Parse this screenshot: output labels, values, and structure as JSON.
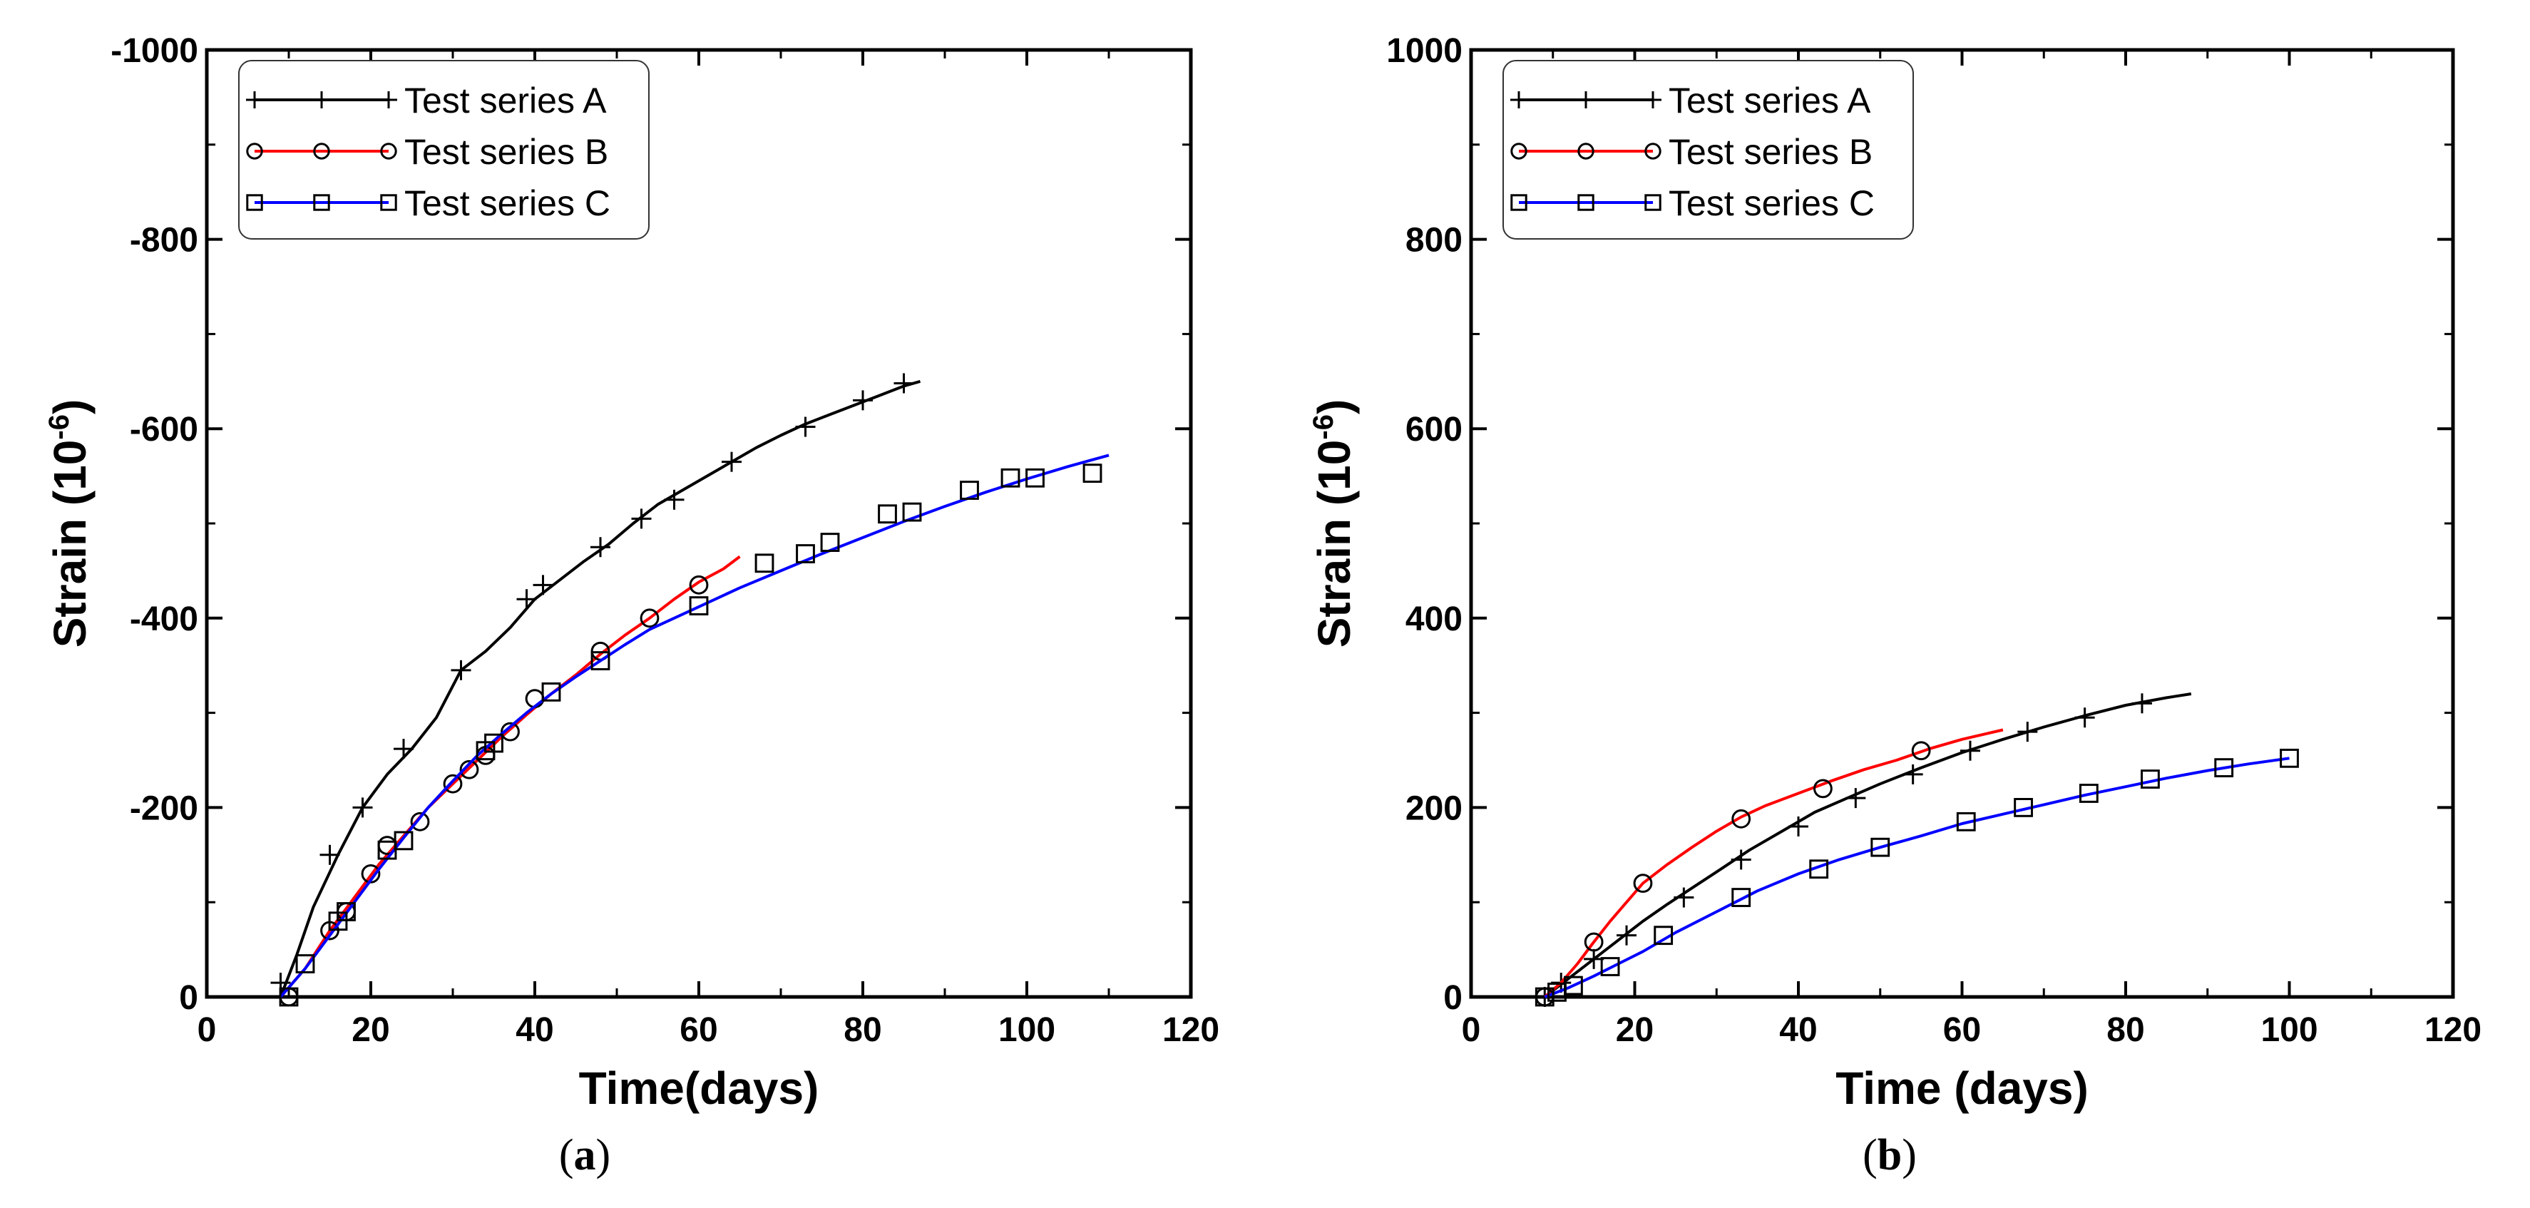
{
  "chart_data": [
    {
      "type": "line",
      "panel_label": "a",
      "xlabel": "Time(days)",
      "ylabel": "Strain (10",
      "ylabel_sup": "-6",
      "ylabel_close": ")",
      "xlim": [
        0,
        120
      ],
      "ylim": [
        0,
        -1000
      ],
      "xticks": [
        0,
        20,
        40,
        60,
        80,
        100,
        120
      ],
      "yticks": [
        0,
        -200,
        -400,
        -600,
        -800,
        -1000
      ],
      "legend_position": "top-left",
      "series": [
        {
          "name": "Test series A",
          "color": "#000000",
          "marker": "plus",
          "x": [
            9,
            11,
            13,
            16,
            19,
            22,
            25,
            28,
            31,
            34,
            37,
            40,
            43,
            46,
            49,
            52,
            55,
            58,
            61,
            64,
            67,
            70,
            73,
            76,
            79,
            82,
            85,
            87
          ],
          "y": [
            0,
            -45,
            -95,
            -150,
            -200,
            -235,
            -262,
            -295,
            -345,
            -365,
            -390,
            -420,
            -440,
            -460,
            -478,
            -500,
            -520,
            -535,
            -550,
            -565,
            -580,
            -593,
            -605,
            -615,
            -625,
            -635,
            -645,
            -650
          ],
          "markers_x": [
            9,
            15,
            19,
            24,
            31,
            39,
            41,
            48,
            53,
            57,
            64,
            73,
            80,
            85
          ],
          "markers_y": [
            -15,
            -150,
            -200,
            -262,
            -345,
            -420,
            -435,
            -475,
            -505,
            -525,
            -565,
            -602,
            -630,
            -648
          ]
        },
        {
          "name": "Test series B",
          "color": "#ff0000",
          "marker": "circle",
          "x": [
            9,
            12,
            15,
            18,
            21,
            24,
            27,
            30,
            33,
            36,
            39,
            42,
            45,
            48,
            51,
            54,
            57,
            60,
            63,
            65
          ],
          "y": [
            0,
            -30,
            -70,
            -105,
            -140,
            -170,
            -200,
            -225,
            -250,
            -275,
            -298,
            -320,
            -340,
            -362,
            -382,
            -400,
            -420,
            -438,
            -452,
            -465
          ],
          "markers_x": [
            10,
            15,
            17,
            20,
            22,
            26,
            30,
            32,
            34,
            37,
            40,
            48,
            54,
            60
          ],
          "markers_y": [
            0,
            -70,
            -90,
            -130,
            -160,
            -185,
            -225,
            -240,
            -255,
            -280,
            -315,
            -365,
            -400,
            -435
          ]
        },
        {
          "name": "Test series C",
          "color": "#0000ff",
          "marker": "square",
          "x": [
            9,
            12,
            15,
            18,
            21,
            24,
            27,
            30,
            33,
            36,
            39,
            42,
            45,
            48,
            51,
            54,
            57,
            60,
            65,
            70,
            75,
            80,
            85,
            90,
            95,
            100,
            105,
            110
          ],
          "y": [
            0,
            -30,
            -65,
            -100,
            -135,
            -168,
            -200,
            -228,
            -255,
            -278,
            -300,
            -320,
            -338,
            -355,
            -372,
            -388,
            -400,
            -412,
            -432,
            -450,
            -468,
            -485,
            -502,
            -518,
            -533,
            -547,
            -560,
            -572
          ],
          "markers_x": [
            10,
            12,
            16,
            17,
            22,
            24,
            34,
            35,
            42,
            48,
            60,
            68,
            73,
            76,
            83,
            86,
            93,
            98,
            101,
            108
          ],
          "markers_y": [
            0,
            -35,
            -80,
            -90,
            -155,
            -165,
            -260,
            -268,
            -322,
            -355,
            -413,
            -458,
            -468,
            -480,
            -510,
            -512,
            -535,
            -548,
            -548,
            -553
          ]
        }
      ]
    },
    {
      "type": "line",
      "panel_label": "b",
      "xlabel": "Time (days)",
      "ylabel": "Strain (10",
      "ylabel_sup": "-6",
      "ylabel_close": ")",
      "xlim": [
        0,
        120
      ],
      "ylim": [
        0,
        1000
      ],
      "xticks": [
        0,
        20,
        40,
        60,
        80,
        100,
        120
      ],
      "yticks": [
        0,
        200,
        400,
        600,
        800,
        1000
      ],
      "legend_position": "top-left",
      "series": [
        {
          "name": "Test series A",
          "color": "#000000",
          "marker": "plus",
          "x": [
            9,
            12,
            15,
            18,
            21,
            24,
            27,
            30,
            34,
            38,
            42,
            46,
            50,
            55,
            60,
            65,
            70,
            75,
            80,
            85,
            88
          ],
          "y": [
            0,
            20,
            40,
            60,
            80,
            98,
            115,
            132,
            155,
            175,
            195,
            210,
            225,
            242,
            258,
            272,
            285,
            297,
            308,
            316,
            320
          ],
          "markers_x": [
            9,
            11,
            15,
            19,
            26,
            33,
            40,
            47,
            54,
            61,
            68,
            75,
            82
          ],
          "markers_y": [
            0,
            15,
            40,
            65,
            105,
            145,
            180,
            210,
            235,
            260,
            280,
            295,
            310
          ]
        },
        {
          "name": "Test series B",
          "color": "#ff0000",
          "marker": "circle",
          "x": [
            9,
            11,
            13,
            15,
            17,
            19,
            21,
            24,
            27,
            30,
            33,
            36,
            40,
            44,
            48,
            52,
            56,
            60,
            65
          ],
          "y": [
            0,
            15,
            35,
            58,
            80,
            100,
            120,
            140,
            158,
            175,
            190,
            202,
            215,
            228,
            240,
            250,
            262,
            272,
            282
          ],
          "markers_x": [
            9,
            15,
            21,
            33,
            43,
            55
          ],
          "markers_y": [
            0,
            58,
            120,
            188,
            220,
            260
          ]
        },
        {
          "name": "Test series C",
          "color": "#0000ff",
          "marker": "square",
          "x": [
            9,
            12,
            15,
            18,
            21,
            25,
            30,
            35,
            40,
            45,
            50,
            55,
            60,
            65,
            70,
            75,
            80,
            85,
            90,
            95,
            100
          ],
          "y": [
            0,
            10,
            22,
            35,
            48,
            68,
            90,
            112,
            130,
            145,
            158,
            170,
            183,
            193,
            203,
            213,
            222,
            231,
            239,
            246,
            252
          ],
          "markers_x": [
            9,
            10.5,
            12.5,
            17,
            23.5,
            33,
            42.5,
            50,
            60.5,
            67.5,
            75.5,
            83,
            92,
            100
          ],
          "markers_y": [
            0,
            5,
            12,
            32,
            65,
            105,
            135,
            158,
            185,
            200,
            215,
            230,
            242,
            252
          ]
        }
      ]
    }
  ]
}
